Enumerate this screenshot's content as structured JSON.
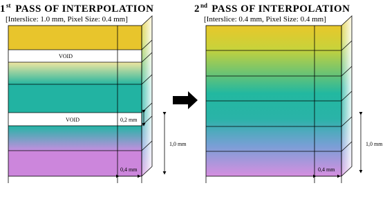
{
  "left": {
    "title_number": "1",
    "title_suffix": "st",
    "title_rest": " PASS OF INTERPOLATION",
    "subtitle": "[Interslice: 1.0 mm, Pixel Size: 0.4 mm]",
    "void_labels": [
      "VOID",
      "VOID"
    ],
    "gap_label": "0,2 mm",
    "height_label": "1,0 mm",
    "width_label": "0,4 mm"
  },
  "right": {
    "title_number": "2",
    "title_suffix": "nd",
    "title_rest": " PASS OF INTERPOLATION",
    "subtitle": "[Interslice: 0.4 mm, Pixel Size: 0.4 mm]",
    "height_label": "1,0 mm",
    "width_label": "0,4 mm"
  }
}
